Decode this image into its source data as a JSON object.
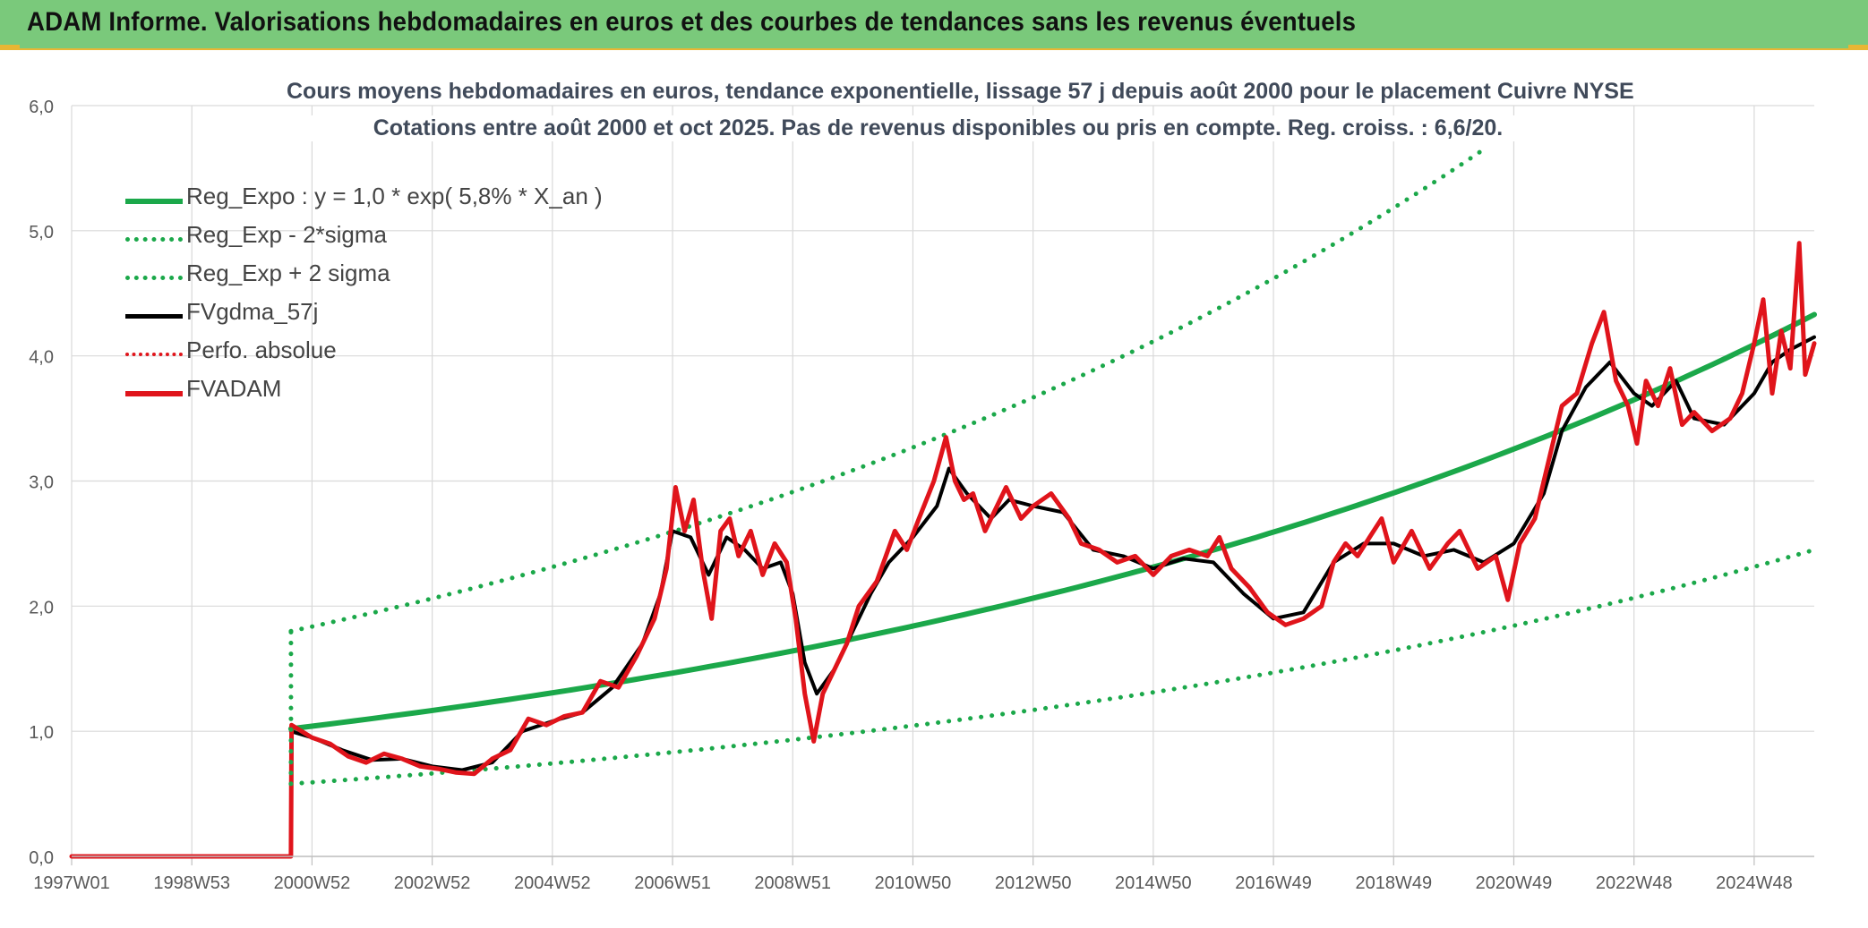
{
  "header": {
    "title": "ADAM Informe. Valorisations hebdomadaires en euros et des courbes de tendances sans les revenus éventuels"
  },
  "chart_data": {
    "type": "line",
    "title": "Cours moyens hebdomadaires en euros, tendance exponentielle, lissage 57 j depuis août 2000 pour le placement Cuivre NYSE",
    "subtitle": "Cotations entre août 2000 et oct 2025. Pas de revenus disponibles ou pris en compte. Reg. croiss. : 6,6/20.",
    "xlabel": "",
    "ylabel": "",
    "ylim": [
      0,
      6
    ],
    "yticks": [
      "0,0",
      "1,0",
      "2,0",
      "3,0",
      "4,0",
      "5,0",
      "6,0"
    ],
    "xlim": [
      1997.0,
      2026.0
    ],
    "xticks": [
      {
        "label": "1997W01",
        "x": 1997.0
      },
      {
        "label": "1998W53",
        "x": 1999.0
      },
      {
        "label": "2000W52",
        "x": 2001.0
      },
      {
        "label": "2002W52",
        "x": 2003.0
      },
      {
        "label": "2004W52",
        "x": 2005.0
      },
      {
        "label": "2006W51",
        "x": 2007.0
      },
      {
        "label": "2008W51",
        "x": 2009.0
      },
      {
        "label": "2010W50",
        "x": 2011.0
      },
      {
        "label": "2012W50",
        "x": 2013.0
      },
      {
        "label": "2014W50",
        "x": 2015.0
      },
      {
        "label": "2016W49",
        "x": 2017.0
      },
      {
        "label": "2018W49",
        "x": 2019.0
      },
      {
        "label": "2020W49",
        "x": 2021.0
      },
      {
        "label": "2022W48",
        "x": 2023.0
      },
      {
        "label": "2024W48",
        "x": 2025.0
      }
    ],
    "grid": true,
    "legend_position": "top-left",
    "series": [
      {
        "name": "Reg_Expo : y = 1,0 * exp( 5,8% *  X_an )",
        "color": "#1ba84a",
        "style": "solid",
        "points": [
          [
            2000.65,
            1.02
          ],
          [
            2026.0,
            4.33
          ]
        ]
      },
      {
        "name": "Reg_Exp - 2*sigma",
        "color": "#1ba84a",
        "style": "dotted",
        "points": [
          [
            2000.65,
            0.58
          ],
          [
            2026.0,
            2.45
          ]
        ]
      },
      {
        "name": "Reg_Exp + 2 sigma",
        "color": "#1ba84a",
        "style": "dotted",
        "points": [
          [
            2000.65,
            1.8
          ],
          [
            2020.5,
            5.65
          ]
        ]
      },
      {
        "name": "FVgdma_57j",
        "color": "#000000",
        "style": "solid",
        "points": [
          [
            2000.65,
            1.0
          ],
          [
            2001.0,
            0.95
          ],
          [
            2001.5,
            0.85
          ],
          [
            2002.0,
            0.77
          ],
          [
            2002.5,
            0.78
          ],
          [
            2003.0,
            0.72
          ],
          [
            2003.5,
            0.69
          ],
          [
            2004.0,
            0.75
          ],
          [
            2004.5,
            1.0
          ],
          [
            2005.0,
            1.08
          ],
          [
            2005.5,
            1.15
          ],
          [
            2006.0,
            1.35
          ],
          [
            2006.5,
            1.7
          ],
          [
            2006.8,
            2.1
          ],
          [
            2007.0,
            2.6
          ],
          [
            2007.3,
            2.55
          ],
          [
            2007.6,
            2.25
          ],
          [
            2007.9,
            2.55
          ],
          [
            2008.2,
            2.45
          ],
          [
            2008.5,
            2.3
          ],
          [
            2008.8,
            2.35
          ],
          [
            2009.0,
            2.1
          ],
          [
            2009.2,
            1.55
          ],
          [
            2009.4,
            1.3
          ],
          [
            2009.7,
            1.5
          ],
          [
            2010.0,
            1.8
          ],
          [
            2010.3,
            2.1
          ],
          [
            2010.6,
            2.35
          ],
          [
            2011.0,
            2.55
          ],
          [
            2011.4,
            2.8
          ],
          [
            2011.6,
            3.1
          ],
          [
            2011.9,
            2.9
          ],
          [
            2012.3,
            2.7
          ],
          [
            2012.6,
            2.85
          ],
          [
            2013.0,
            2.8
          ],
          [
            2013.5,
            2.75
          ],
          [
            2014.0,
            2.45
          ],
          [
            2014.5,
            2.4
          ],
          [
            2015.0,
            2.3
          ],
          [
            2015.5,
            2.38
          ],
          [
            2016.0,
            2.35
          ],
          [
            2016.5,
            2.1
          ],
          [
            2017.0,
            1.9
          ],
          [
            2017.5,
            1.95
          ],
          [
            2018.0,
            2.35
          ],
          [
            2018.5,
            2.5
          ],
          [
            2019.0,
            2.5
          ],
          [
            2019.5,
            2.4
          ],
          [
            2020.0,
            2.45
          ],
          [
            2020.5,
            2.35
          ],
          [
            2021.0,
            2.5
          ],
          [
            2021.5,
            2.9
          ],
          [
            2021.8,
            3.4
          ],
          [
            2022.2,
            3.75
          ],
          [
            2022.6,
            3.95
          ],
          [
            2023.0,
            3.7
          ],
          [
            2023.3,
            3.6
          ],
          [
            2023.7,
            3.8
          ],
          [
            2024.0,
            3.5
          ],
          [
            2024.5,
            3.45
          ],
          [
            2025.0,
            3.7
          ],
          [
            2025.3,
            3.95
          ],
          [
            2025.6,
            4.05
          ],
          [
            2026.0,
            4.15
          ]
        ]
      },
      {
        "name": "Perfo. absolue",
        "color": "#e0141b",
        "style": "dotted",
        "points": []
      },
      {
        "name": "FVADAM",
        "color": "#e0141b",
        "style": "solid",
        "points": [
          [
            1997.0,
            0.0
          ],
          [
            2000.65,
            0.0
          ],
          [
            2000.66,
            1.05
          ],
          [
            2001.0,
            0.95
          ],
          [
            2001.3,
            0.9
          ],
          [
            2001.6,
            0.8
          ],
          [
            2001.9,
            0.75
          ],
          [
            2002.2,
            0.82
          ],
          [
            2002.5,
            0.78
          ],
          [
            2002.8,
            0.72
          ],
          [
            2003.1,
            0.7
          ],
          [
            2003.4,
            0.67
          ],
          [
            2003.7,
            0.66
          ],
          [
            2004.0,
            0.78
          ],
          [
            2004.3,
            0.85
          ],
          [
            2004.6,
            1.1
          ],
          [
            2004.9,
            1.05
          ],
          [
            2005.2,
            1.12
          ],
          [
            2005.5,
            1.15
          ],
          [
            2005.8,
            1.4
          ],
          [
            2006.1,
            1.35
          ],
          [
            2006.4,
            1.6
          ],
          [
            2006.7,
            1.9
          ],
          [
            2006.9,
            2.3
          ],
          [
            2007.05,
            2.95
          ],
          [
            2007.2,
            2.6
          ],
          [
            2007.35,
            2.85
          ],
          [
            2007.5,
            2.3
          ],
          [
            2007.65,
            1.9
          ],
          [
            2007.8,
            2.6
          ],
          [
            2007.95,
            2.7
          ],
          [
            2008.1,
            2.4
          ],
          [
            2008.3,
            2.6
          ],
          [
            2008.5,
            2.25
          ],
          [
            2008.7,
            2.5
          ],
          [
            2008.9,
            2.35
          ],
          [
            2009.05,
            1.9
          ],
          [
            2009.2,
            1.3
          ],
          [
            2009.35,
            0.92
          ],
          [
            2009.5,
            1.3
          ],
          [
            2009.7,
            1.5
          ],
          [
            2009.9,
            1.7
          ],
          [
            2010.1,
            2.0
          ],
          [
            2010.4,
            2.2
          ],
          [
            2010.7,
            2.6
          ],
          [
            2010.9,
            2.45
          ],
          [
            2011.1,
            2.7
          ],
          [
            2011.35,
            3.0
          ],
          [
            2011.55,
            3.35
          ],
          [
            2011.7,
            3.0
          ],
          [
            2011.85,
            2.85
          ],
          [
            2012.0,
            2.9
          ],
          [
            2012.2,
            2.6
          ],
          [
            2012.35,
            2.75
          ],
          [
            2012.55,
            2.95
          ],
          [
            2012.8,
            2.7
          ],
          [
            2013.0,
            2.8
          ],
          [
            2013.3,
            2.9
          ],
          [
            2013.6,
            2.7
          ],
          [
            2013.8,
            2.5
          ],
          [
            2014.1,
            2.45
          ],
          [
            2014.4,
            2.35
          ],
          [
            2014.7,
            2.4
          ],
          [
            2015.0,
            2.25
          ],
          [
            2015.3,
            2.4
          ],
          [
            2015.6,
            2.45
          ],
          [
            2015.9,
            2.4
          ],
          [
            2016.1,
            2.55
          ],
          [
            2016.3,
            2.3
          ],
          [
            2016.6,
            2.15
          ],
          [
            2016.9,
            1.95
          ],
          [
            2017.2,
            1.85
          ],
          [
            2017.5,
            1.9
          ],
          [
            2017.8,
            2.0
          ],
          [
            2018.0,
            2.35
          ],
          [
            2018.2,
            2.5
          ],
          [
            2018.4,
            2.4
          ],
          [
            2018.6,
            2.55
          ],
          [
            2018.8,
            2.7
          ],
          [
            2019.0,
            2.35
          ],
          [
            2019.3,
            2.6
          ],
          [
            2019.6,
            2.3
          ],
          [
            2019.9,
            2.5
          ],
          [
            2020.1,
            2.6
          ],
          [
            2020.4,
            2.3
          ],
          [
            2020.7,
            2.4
          ],
          [
            2020.9,
            2.05
          ],
          [
            2021.1,
            2.5
          ],
          [
            2021.35,
            2.7
          ],
          [
            2021.6,
            3.2
          ],
          [
            2021.8,
            3.6
          ],
          [
            2022.05,
            3.7
          ],
          [
            2022.3,
            4.1
          ],
          [
            2022.5,
            4.35
          ],
          [
            2022.7,
            3.8
          ],
          [
            2022.9,
            3.6
          ],
          [
            2023.05,
            3.3
          ],
          [
            2023.2,
            3.8
          ],
          [
            2023.4,
            3.6
          ],
          [
            2023.6,
            3.9
          ],
          [
            2023.8,
            3.45
          ],
          [
            2024.0,
            3.55
          ],
          [
            2024.3,
            3.4
          ],
          [
            2024.6,
            3.5
          ],
          [
            2024.8,
            3.7
          ],
          [
            2025.0,
            4.1
          ],
          [
            2025.15,
            4.45
          ],
          [
            2025.3,
            3.7
          ],
          [
            2025.45,
            4.2
          ],
          [
            2025.6,
            3.9
          ],
          [
            2025.75,
            4.9
          ],
          [
            2025.85,
            3.85
          ],
          [
            2026.0,
            4.1
          ]
        ]
      }
    ]
  }
}
